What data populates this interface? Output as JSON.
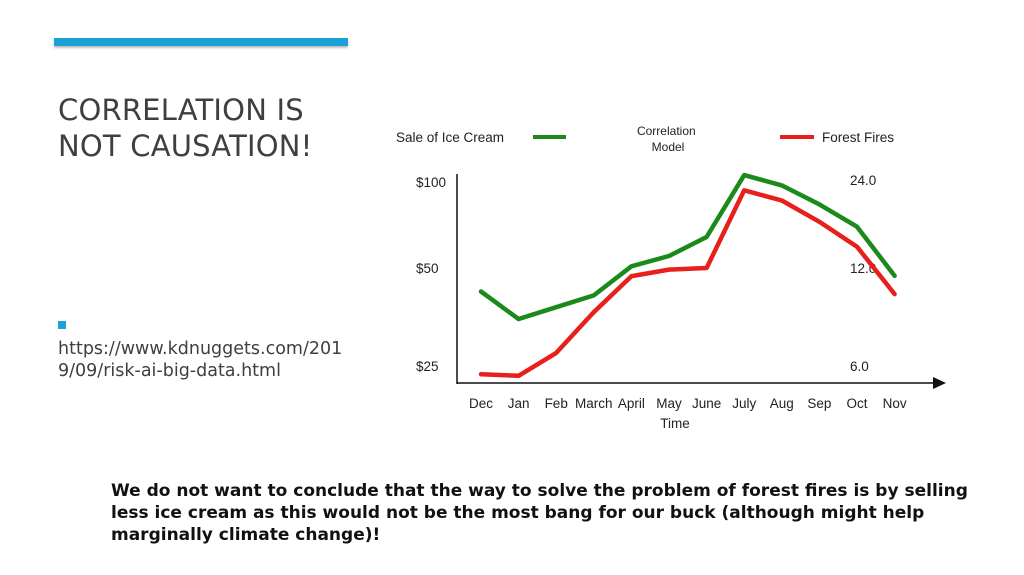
{
  "slide": {
    "title": "CORRELATION IS NOT CAUSATION!",
    "bullet_url": "https://www.kdnuggets.com/2019/09/risk-ai-big-data.html",
    "note": "We do not want to conclude that the way to solve the problem of forest fires is by selling less ice cream as this would not be the most bang for our buck (although might help marginally climate change)!"
  },
  "colors": {
    "accent": "#1ba1d8",
    "ice_cream": "#1a8a1a",
    "forest_fires": "#e8201c"
  },
  "chart_data": {
    "type": "line",
    "title": "Correlation Model",
    "xlabel": "Time",
    "categories": [
      "Dec",
      "Jan",
      "Feb",
      "March",
      "April",
      "May",
      "June",
      "July",
      "Aug",
      "Sep",
      "Oct",
      "Nov"
    ],
    "left_axis": {
      "ticks": [
        25,
        50,
        100
      ],
      "labels": [
        "$25",
        "$50",
        "$100"
      ],
      "range": [
        25,
        100
      ]
    },
    "right_axis": {
      "ticks": [
        6.0,
        12.0,
        24.0
      ],
      "labels": [
        "6.0",
        "12.0",
        "24.0"
      ],
      "range": [
        6.0,
        24.0
      ]
    },
    "legend": "top",
    "grid": false,
    "series": [
      {
        "name": "Sale of Ice Cream",
        "color": "#1a8a1a",
        "axis": "left",
        "points": [
          [
            "Dec",
            44
          ],
          [
            "Jan",
            37
          ],
          [
            "Feb",
            40
          ],
          [
            "March",
            43
          ],
          [
            "April",
            51
          ],
          [
            "May",
            57
          ],
          [
            "June",
            68
          ],
          [
            "July",
            104
          ],
          [
            "Aug",
            98
          ],
          [
            "Sep",
            87
          ],
          [
            "Oct",
            74
          ],
          [
            "Nov",
            48
          ]
        ]
      },
      {
        "name": "Forest Fires",
        "color": "#e8201c",
        "axis": "right",
        "points": [
          [
            "Dec",
            5.5
          ],
          [
            "Jan",
            5.4
          ],
          [
            "Feb",
            6.8
          ],
          [
            "March",
            9.3
          ],
          [
            "April",
            11.5
          ],
          [
            "May",
            11.9
          ],
          [
            "June",
            12.0
          ],
          [
            "July",
            22.6
          ],
          [
            "Aug",
            21.2
          ],
          [
            "Sep",
            18.3
          ],
          [
            "Oct",
            14.9
          ],
          [
            "Nov",
            10.4
          ]
        ]
      }
    ]
  }
}
